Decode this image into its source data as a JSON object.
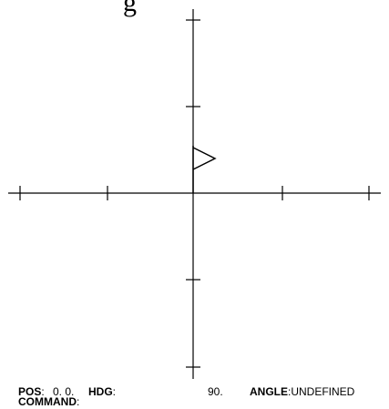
{
  "graphics": {
    "partial_title": "g",
    "turtle_icon": "flag-turtle-icon",
    "axis_color": "#000000"
  },
  "status": {
    "pos_label": "POS",
    "pos_value": "0. 0.",
    "hdg_label": "HDG",
    "hdg_value": "90.",
    "angle_label": "ANGLE",
    "angle_value": "UNDEFINED"
  },
  "command": {
    "label": "COMMAND",
    "value": ""
  }
}
